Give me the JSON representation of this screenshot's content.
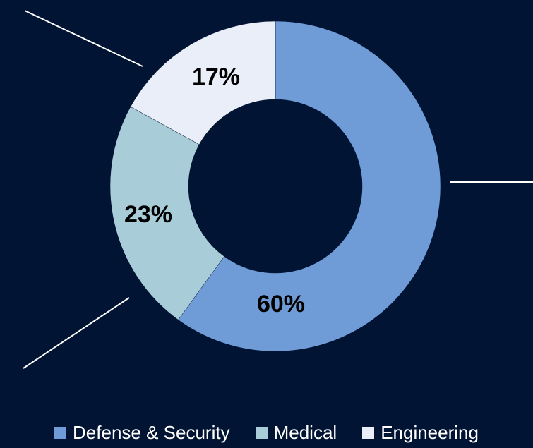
{
  "colors": {
    "background": "#011433",
    "leader_line": "#FFFFFF",
    "legend_text": "#FFFFFF"
  },
  "chart_data": {
    "type": "pie",
    "variant": "doughnut",
    "start_angle_deg": 0,
    "direction": "clockwise",
    "legend_position": "bottom",
    "slices": [
      {
        "label": "Defense & Security",
        "value": 60,
        "value_label": "60%",
        "color": "#6F9BD7"
      },
      {
        "label": "Medical",
        "value": 23,
        "value_label": "23%",
        "color": "#A8CCD8"
      },
      {
        "label": "Engineering",
        "value": 17,
        "value_label": "17%",
        "color": "#E9EEF8"
      }
    ]
  }
}
